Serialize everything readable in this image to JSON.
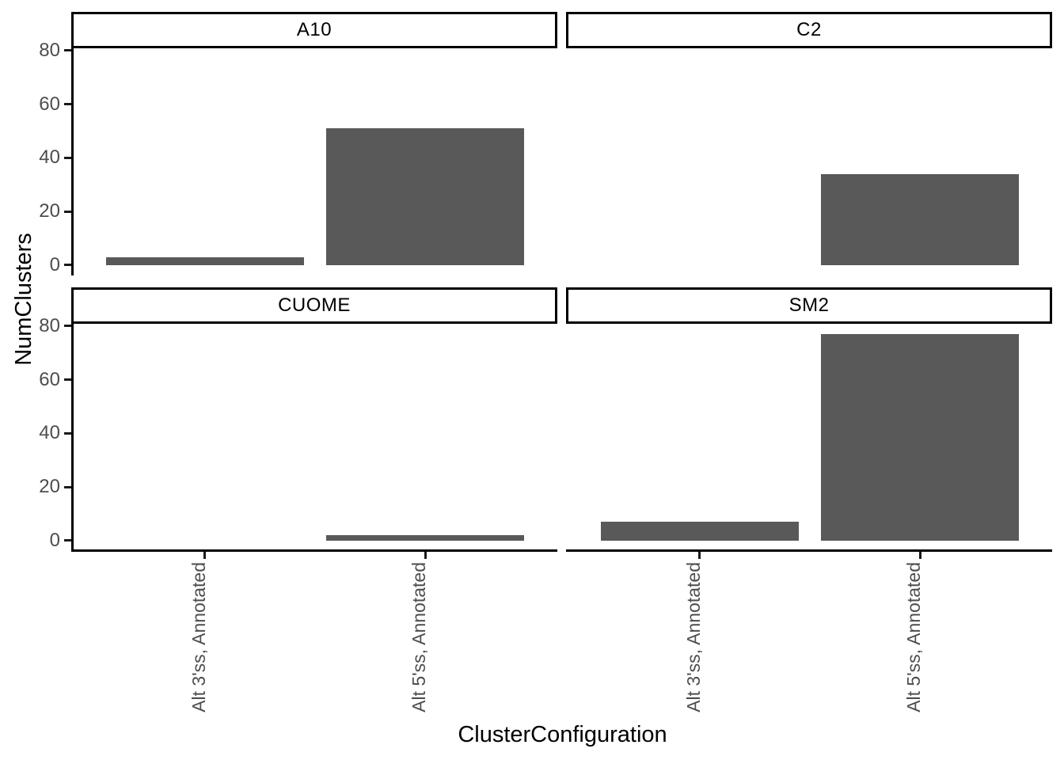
{
  "chart_data": {
    "type": "bar",
    "title": "",
    "xlabel": "ClusterConfiguration",
    "ylabel": "NumClusters",
    "categories": [
      "Alt 3'ss, Annotated",
      "Alt 5'ss, Annotated"
    ],
    "facets": [
      {
        "label": "A10",
        "values": [
          3,
          51
        ]
      },
      {
        "label": "C2",
        "values": [
          0,
          34
        ]
      },
      {
        "label": "CUOME",
        "values": [
          0,
          2
        ]
      },
      {
        "label": "SM2",
        "values": [
          7,
          77
        ]
      }
    ],
    "facet_layout": "2x2",
    "y_ticks": [
      0,
      20,
      40,
      60,
      80
    ],
    "ylim": [
      -3.85,
      80.85
    ],
    "bar_color": "#595959",
    "colors": {
      "axis_text": "#4d4d4d",
      "axis_line": "#000000",
      "strip_border": "#000000",
      "strip_background": "#ffffff",
      "strip_text": "#000000",
      "panel_background": "#ffffff"
    },
    "grid": false,
    "legend": "none"
  }
}
